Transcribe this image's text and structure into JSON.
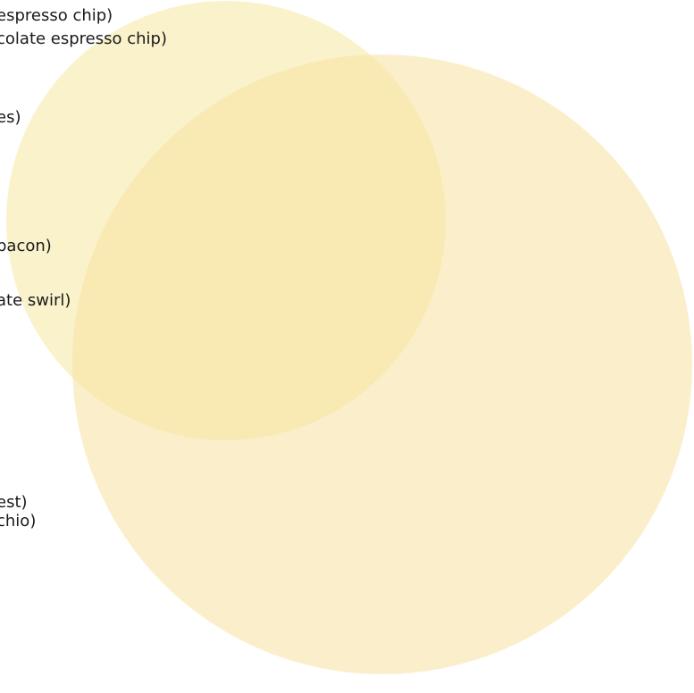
{
  "colors": {
    "circle_small": "#f7e9a9",
    "circle_large": "#f7e2a0",
    "text": "#1a1a1a"
  },
  "labels": [
    "espresso chip)",
    "colate espresso chip)",
    "es)",
    "bacon)",
    "ate swirl)",
    "est)",
    "chio)"
  ]
}
